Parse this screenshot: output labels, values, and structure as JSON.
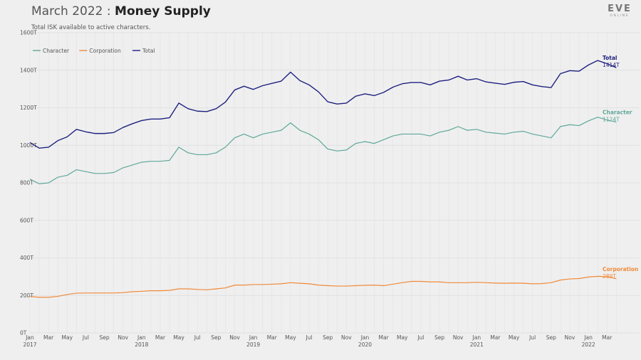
{
  "header": {
    "title_prefix": "March 2022 : ",
    "title_main": "Money Supply",
    "subtitle": "Total ISK available to active characters.",
    "logo_text": "EVE",
    "logo_sub": "ONLINE"
  },
  "chart_data": {
    "type": "line",
    "title": "March 2022 : Money Supply",
    "subtitle": "Total ISK available to active characters.",
    "xlabel": "",
    "ylabel": "",
    "ylim": [
      0,
      1600
    ],
    "y_ticks": [
      "0T",
      "200T",
      "400T",
      "600T",
      "800T",
      "1000T",
      "1200T",
      "1400T",
      "1600T"
    ],
    "y_tick_values": [
      0,
      200,
      400,
      600,
      800,
      1000,
      1200,
      1400,
      1600
    ],
    "x_start": "2017-01",
    "x_end": "2022-04",
    "x_ticks": [
      {
        "month": "Jan",
        "year": "2017"
      },
      {
        "month": "Mar",
        "year": ""
      },
      {
        "month": "May",
        "year": ""
      },
      {
        "month": "Jul",
        "year": ""
      },
      {
        "month": "Sep",
        "year": ""
      },
      {
        "month": "Nov",
        "year": ""
      },
      {
        "month": "Jan",
        "year": "2018"
      },
      {
        "month": "Mar",
        "year": ""
      },
      {
        "month": "May",
        "year": ""
      },
      {
        "month": "Jul",
        "year": ""
      },
      {
        "month": "Sep",
        "year": ""
      },
      {
        "month": "Nov",
        "year": ""
      },
      {
        "month": "Jan",
        "year": "2019"
      },
      {
        "month": "Mar",
        "year": ""
      },
      {
        "month": "May",
        "year": ""
      },
      {
        "month": "Jul",
        "year": ""
      },
      {
        "month": "Sep",
        "year": ""
      },
      {
        "month": "Nov",
        "year": ""
      },
      {
        "month": "Jan",
        "year": "2020"
      },
      {
        "month": "Mar",
        "year": ""
      },
      {
        "month": "May",
        "year": ""
      },
      {
        "month": "Jul",
        "year": ""
      },
      {
        "month": "Sep",
        "year": ""
      },
      {
        "month": "Nov",
        "year": ""
      },
      {
        "month": "Jan",
        "year": "2021"
      },
      {
        "month": "Mar",
        "year": ""
      },
      {
        "month": "May",
        "year": ""
      },
      {
        "month": "Jul",
        "year": ""
      },
      {
        "month": "Sep",
        "year": ""
      },
      {
        "month": "Nov",
        "year": ""
      },
      {
        "month": "Jan",
        "year": "2022"
      },
      {
        "month": "Mar",
        "year": ""
      }
    ],
    "grid": true,
    "legend_placement": "top-left",
    "x": [
      "2017-01",
      "2017-02",
      "2017-03",
      "2017-04",
      "2017-05",
      "2017-06",
      "2017-07",
      "2017-08",
      "2017-09",
      "2017-10",
      "2017-11",
      "2017-12",
      "2018-01",
      "2018-02",
      "2018-03",
      "2018-04",
      "2018-05",
      "2018-06",
      "2018-07",
      "2018-08",
      "2018-09",
      "2018-10",
      "2018-11",
      "2018-12",
      "2019-01",
      "2019-02",
      "2019-03",
      "2019-04",
      "2019-05",
      "2019-06",
      "2019-07",
      "2019-08",
      "2019-09",
      "2019-10",
      "2019-11",
      "2019-12",
      "2020-01",
      "2020-02",
      "2020-03",
      "2020-04",
      "2020-05",
      "2020-06",
      "2020-07",
      "2020-08",
      "2020-09",
      "2020-10",
      "2020-11",
      "2020-12",
      "2021-01",
      "2021-02",
      "2021-03",
      "2021-04",
      "2021-05",
      "2021-06",
      "2021-07",
      "2021-08",
      "2021-09",
      "2021-10",
      "2021-11",
      "2021-12",
      "2022-01",
      "2022-02",
      "2022-03",
      "2022-04"
    ],
    "series": [
      {
        "name": "Character",
        "color": "#5fa899",
        "values": [
          820,
          795,
          800,
          830,
          840,
          870,
          860,
          850,
          850,
          855,
          880,
          895,
          910,
          915,
          915,
          920,
          990,
          960,
          950,
          950,
          960,
          990,
          1040,
          1060,
          1040,
          1060,
          1070,
          1080,
          1120,
          1080,
          1060,
          1030,
          980,
          970,
          975,
          1010,
          1020,
          1010,
          1030,
          1050,
          1060,
          1060,
          1060,
          1050,
          1070,
          1080,
          1100,
          1080,
          1085,
          1070,
          1065,
          1060,
          1070,
          1075,
          1060,
          1050,
          1040,
          1100,
          1110,
          1105,
          1130,
          1150,
          1135,
          1124
        ]
      },
      {
        "name": "Corporation",
        "color": "#f08a3a",
        "values": [
          195,
          190,
          190,
          195,
          205,
          212,
          213,
          213,
          213,
          213,
          215,
          220,
          222,
          225,
          225,
          227,
          235,
          235,
          232,
          230,
          235,
          240,
          255,
          255,
          258,
          258,
          260,
          262,
          268,
          265,
          262,
          255,
          252,
          250,
          250,
          252,
          254,
          255,
          252,
          260,
          268,
          275,
          275,
          272,
          272,
          268,
          268,
          268,
          270,
          268,
          266,
          265,
          266,
          265,
          262,
          263,
          268,
          282,
          288,
          290,
          298,
          302,
          300,
          289
        ]
      },
      {
        "name": "Total",
        "color": "#1f2080",
        "values": [
          1015,
          985,
          990,
          1025,
          1045,
          1085,
          1072,
          1063,
          1063,
          1068,
          1095,
          1115,
          1132,
          1140,
          1140,
          1147,
          1225,
          1195,
          1182,
          1180,
          1195,
          1230,
          1295,
          1315,
          1298,
          1318,
          1330,
          1342,
          1390,
          1345,
          1322,
          1285,
          1232,
          1220,
          1225,
          1262,
          1274,
          1265,
          1282,
          1310,
          1328,
          1335,
          1335,
          1322,
          1342,
          1348,
          1368,
          1348,
          1355,
          1338,
          1331,
          1325,
          1336,
          1340,
          1322,
          1313,
          1308,
          1382,
          1398,
          1395,
          1428,
          1452,
          1435,
          1414
        ]
      }
    ],
    "end_labels": [
      {
        "name": "Total",
        "value": "1414T"
      },
      {
        "name": "Character",
        "value": "1124T"
      },
      {
        "name": "Corporation",
        "value": "289T"
      }
    ]
  }
}
